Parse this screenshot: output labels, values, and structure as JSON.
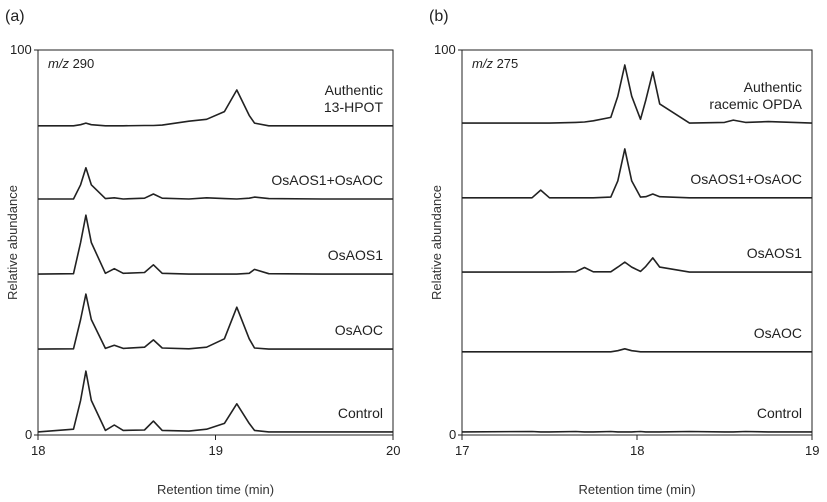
{
  "chart_data": [
    {
      "type": "line",
      "title": "(a)",
      "subtitle": "m/z 290",
      "xlabel": "Retention time (min)",
      "ylabel": "Relative abundance",
      "x": [
        18.0,
        18.2,
        18.24,
        18.27,
        18.3,
        18.38,
        18.43,
        18.48,
        18.6,
        18.65,
        18.7,
        18.85,
        18.95,
        19.05,
        19.12,
        19.19,
        19.22,
        19.3,
        19.6,
        20.0
      ],
      "series": [
        {
          "name": "Authentic\n13-HPOT",
          "color": "#222222",
          "values": [
            80.3,
            80.3,
            80.6,
            81,
            80.6,
            80.3,
            80.3,
            80.3,
            80.4,
            80.4,
            80.5,
            81.5,
            82,
            84,
            89.6,
            83,
            81,
            80.3,
            80.3,
            80.3
          ]
        },
        {
          "name": "OsAOS1+OsAOC",
          "color": "#222222",
          "values": [
            61.3,
            61.3,
            65,
            69.4,
            65,
            61.4,
            61.6,
            61.3,
            61.5,
            62.6,
            61.5,
            61.3,
            61.6,
            61.4,
            61.3,
            61.5,
            61.8,
            61.4,
            61.3,
            61.3
          ]
        },
        {
          "name": "OsAOS1",
          "color": "#222222",
          "values": [
            41.8,
            41.9,
            50,
            57.1,
            50,
            42,
            43.2,
            42,
            42.2,
            44.2,
            42,
            41.8,
            41.8,
            41.8,
            41.8,
            42,
            43,
            41.9,
            41.8,
            41.8
          ]
        },
        {
          "name": "OsAOC",
          "color": "#222222",
          "values": [
            22.3,
            22.4,
            30,
            36.6,
            30,
            22.5,
            23.3,
            22.5,
            22.8,
            24.7,
            22.6,
            22.4,
            22.8,
            25,
            33.2,
            25,
            22.6,
            22.3,
            22.3,
            22.3
          ]
        },
        {
          "name": "Control",
          "color": "#222222",
          "values": [
            0.8,
            1.5,
            9,
            16.6,
            9,
            1.2,
            2.6,
            1.2,
            1.3,
            3.6,
            1.2,
            1.0,
            1.5,
            3,
            8.1,
            3,
            1.2,
            0.8,
            0.8,
            0.8
          ]
        }
      ],
      "xlim": [
        18,
        20
      ],
      "xticks": [
        18,
        19,
        20
      ],
      "ylim": [
        0,
        100
      ],
      "yticks": [
        0,
        100
      ]
    },
    {
      "type": "line",
      "title": "(b)",
      "subtitle": "m/z 275",
      "xlabel": "Retention time (min)",
      "ylabel": "Relative abundance",
      "x": [
        17.0,
        17.4,
        17.45,
        17.5,
        17.65,
        17.7,
        17.75,
        17.85,
        17.89,
        17.93,
        17.97,
        18.02,
        18.05,
        18.09,
        18.13,
        18.3,
        18.5,
        18.55,
        18.62,
        18.75,
        19.0
      ],
      "series": [
        {
          "name": "Authentic\nracemic OPDA",
          "color": "#222222",
          "values": [
            81,
            81,
            81,
            81,
            81.2,
            81.3,
            81.6,
            82.5,
            88,
            96.1,
            88,
            82,
            87,
            94.3,
            86,
            81,
            81.2,
            81.8,
            81.2,
            81.4,
            81
          ]
        },
        {
          "name": "OsAOS1+OsAOC",
          "color": "#222222",
          "values": [
            61.6,
            61.6,
            63.6,
            61.6,
            61.6,
            61.6,
            61.6,
            61.8,
            66,
            74.3,
            66,
            61.8,
            61.9,
            62.6,
            61.9,
            61.6,
            61.6,
            61.6,
            61.6,
            61.6,
            61.6
          ]
        },
        {
          "name": "OsAOS1",
          "color": "#222222",
          "values": [
            42.3,
            42.3,
            42.3,
            42.3,
            42.4,
            43.5,
            42.4,
            42.4,
            43.6,
            44.9,
            43.6,
            42.5,
            43.8,
            46,
            43.6,
            42.3,
            42.3,
            42.3,
            42.3,
            42.3,
            42.3
          ]
        },
        {
          "name": "OsAOC",
          "color": "#222222",
          "values": [
            21.6,
            21.6,
            21.6,
            21.6,
            21.6,
            21.6,
            21.6,
            21.6,
            21.9,
            22.4,
            21.9,
            21.6,
            21.6,
            21.6,
            21.6,
            21.6,
            21.6,
            21.6,
            21.6,
            21.6,
            21.6
          ]
        },
        {
          "name": "Control",
          "color": "#222222",
          "values": [
            0.8,
            0.9,
            0.8,
            0.8,
            0.9,
            0.8,
            0.8,
            0.9,
            0.8,
            0.8,
            0.8,
            0.9,
            0.8,
            0.8,
            0.8,
            0.9,
            0.8,
            0.8,
            0.9,
            0.8,
            0.8
          ]
        }
      ],
      "xlim": [
        17,
        19
      ],
      "xticks": [
        17,
        18,
        19
      ],
      "ylim": [
        0,
        100
      ],
      "yticks": [
        0,
        100
      ]
    }
  ]
}
